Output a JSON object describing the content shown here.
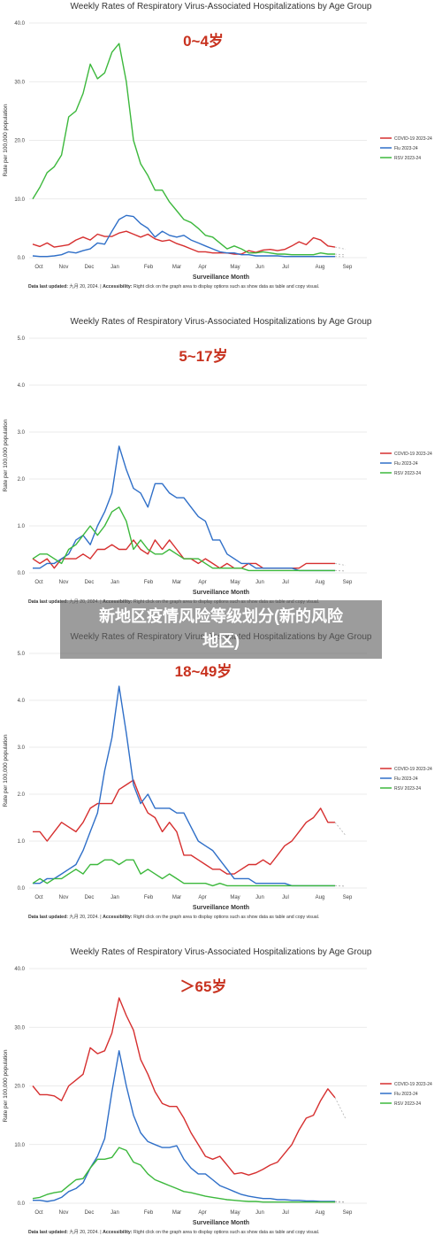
{
  "overlay": {
    "line1": "新地区疫情风险等级划分(新的风险",
    "line2": "地区)"
  },
  "footer": {
    "label": "Data last updated:",
    "date": " 九月 20, 2024. | ",
    "access_label": "Accessibility:",
    "access_text": " Right click on the graph area to display options such as show data as table and copy visual."
  },
  "colors": {
    "covid": "#d62f2f",
    "flu": "#2f6fc8",
    "rsv": "#3cb83c",
    "age_label": "#c8321f"
  },
  "chart_data": [
    {
      "type": "line",
      "title": "Weekly Rates of Respiratory Virus-Associated Hospitalizations by Age Group",
      "age_group": "0~4岁",
      "xlabel": "Surveillance Month",
      "ylabel": "Rate per 100,000 population",
      "ylim": [
        0,
        40
      ],
      "yticks": [
        "0.0",
        "10.0",
        "20.0",
        "30.0",
        "40.0"
      ],
      "x_ticks": [
        "Oct",
        "Nov",
        "Dec",
        "Jan",
        "Feb",
        "Mar",
        "Apr",
        "May",
        "Jun",
        "Jul",
        "Aug",
        "Sep"
      ],
      "legend": "right",
      "series": [
        {
          "name": "COVID-19 2023-24",
          "color": "#d62f2f",
          "values": [
            2.3,
            1.9,
            2.5,
            1.8,
            2.0,
            2.2,
            3.0,
            3.5,
            3.0,
            4.0,
            3.6,
            3.6,
            4.2,
            4.5,
            4.0,
            3.5,
            4.0,
            3.2,
            2.8,
            3.0,
            2.4,
            2.0,
            1.5,
            1.0,
            1.0,
            0.8,
            0.8,
            0.8,
            0.6,
            0.6,
            1.2,
            0.9,
            1.3,
            1.4,
            1.2,
            1.4,
            2.0,
            2.7,
            2.2,
            3.4,
            3.0,
            2.0,
            1.8
          ]
        },
        {
          "name": "Flu 2023-24",
          "color": "#2f6fc8",
          "values": [
            0.3,
            0.2,
            0.2,
            0.3,
            0.5,
            1.0,
            0.8,
            1.2,
            1.5,
            2.5,
            2.3,
            4.5,
            6.5,
            7.2,
            7.0,
            5.8,
            5.0,
            3.5,
            4.5,
            3.8,
            3.5,
            3.8,
            3.0,
            2.5,
            2.0,
            1.5,
            1.0,
            0.8,
            0.8,
            0.5,
            0.5,
            0.3,
            0.3,
            0.3,
            0.3,
            0.2,
            0.2,
            0.2,
            0.2,
            0.2,
            0.2,
            0.2,
            0.2
          ]
        },
        {
          "name": "RSV 2023-24",
          "color": "#3cb83c",
          "values": [
            10.0,
            12.0,
            14.5,
            15.5,
            17.5,
            24.0,
            25.0,
            28.0,
            33.0,
            30.5,
            31.5,
            35.0,
            36.5,
            30.0,
            20.0,
            16.0,
            14.0,
            11.5,
            11.5,
            9.5,
            8.0,
            6.5,
            6.0,
            5.0,
            3.8,
            3.5,
            2.5,
            1.5,
            2.0,
            1.5,
            0.8,
            0.8,
            1.0,
            0.8,
            0.6,
            0.6,
            0.5,
            0.5,
            0.5,
            0.5,
            0.8,
            0.6,
            0.6
          ]
        }
      ]
    },
    {
      "type": "line",
      "title": "Weekly Rates of Respiratory Virus-Associated Hospitalizations by Age Group",
      "age_group": "5~17岁",
      "xlabel": "Surveillance Month",
      "ylabel": "Rate per 100,000 population",
      "ylim": [
        0,
        5
      ],
      "yticks": [
        "0.0",
        "1.0",
        "2.0",
        "3.0",
        "4.0",
        "5.0"
      ],
      "x_ticks": [
        "Oct",
        "Nov",
        "Dec",
        "Jan",
        "Feb",
        "Mar",
        "Apr",
        "May",
        "Jun",
        "Jul",
        "Aug",
        "Sep"
      ],
      "legend": "right",
      "series": [
        {
          "name": "COVID-19 2023-24",
          "color": "#d62f2f",
          "values": [
            0.3,
            0.2,
            0.3,
            0.1,
            0.3,
            0.3,
            0.3,
            0.4,
            0.3,
            0.5,
            0.5,
            0.6,
            0.5,
            0.5,
            0.7,
            0.5,
            0.4,
            0.7,
            0.5,
            0.7,
            0.5,
            0.3,
            0.3,
            0.2,
            0.3,
            0.2,
            0.1,
            0.2,
            0.1,
            0.1,
            0.2,
            0.2,
            0.1,
            0.1,
            0.1,
            0.1,
            0.1,
            0.1,
            0.2,
            0.2,
            0.2,
            0.2,
            0.2
          ]
        },
        {
          "name": "Flu 2023-24",
          "color": "#2f6fc8",
          "values": [
            0.1,
            0.1,
            0.2,
            0.2,
            0.3,
            0.4,
            0.7,
            0.8,
            0.6,
            1.0,
            1.3,
            1.7,
            2.7,
            2.2,
            1.8,
            1.7,
            1.4,
            1.9,
            1.9,
            1.7,
            1.6,
            1.6,
            1.4,
            1.2,
            1.1,
            0.7,
            0.7,
            0.4,
            0.3,
            0.2,
            0.2,
            0.1,
            0.1,
            0.1,
            0.1,
            0.1,
            0.1,
            0.05,
            0.05,
            0.05,
            0.05,
            0.05,
            0.05
          ]
        },
        {
          "name": "RSV 2023-24",
          "color": "#3cb83c",
          "values": [
            0.3,
            0.4,
            0.4,
            0.3,
            0.2,
            0.5,
            0.6,
            0.8,
            1.0,
            0.8,
            1.0,
            1.3,
            1.4,
            1.1,
            0.5,
            0.7,
            0.5,
            0.4,
            0.4,
            0.5,
            0.4,
            0.3,
            0.3,
            0.3,
            0.2,
            0.1,
            0.1,
            0.1,
            0.1,
            0.1,
            0.05,
            0.05,
            0.05,
            0.05,
            0.05,
            0.05,
            0.05,
            0.05,
            0.05,
            0.05,
            0.05,
            0.05,
            0.05
          ]
        }
      ]
    },
    {
      "type": "line",
      "title": "Weekly Rates of Respiratory Virus-Associated Hospitalizations by Age Group",
      "age_group": "18~49岁",
      "xlabel": "Surveillance Month",
      "ylabel": "Rate per 100,000 population",
      "ylim": [
        0,
        5
      ],
      "yticks": [
        "0.0",
        "1.0",
        "2.0",
        "3.0",
        "4.0",
        "5.0"
      ],
      "x_ticks": [
        "Oct",
        "Nov",
        "Dec",
        "Jan",
        "Feb",
        "Mar",
        "Apr",
        "May",
        "Jun",
        "Jul",
        "Aug",
        "Sep"
      ],
      "legend": "right",
      "series": [
        {
          "name": "COVID-19 2023-24",
          "color": "#d62f2f",
          "values": [
            1.2,
            1.2,
            1.0,
            1.2,
            1.4,
            1.3,
            1.2,
            1.4,
            1.7,
            1.8,
            1.8,
            1.8,
            2.1,
            2.2,
            2.3,
            1.9,
            1.6,
            1.5,
            1.2,
            1.4,
            1.2,
            0.7,
            0.7,
            0.6,
            0.5,
            0.4,
            0.4,
            0.3,
            0.3,
            0.4,
            0.5,
            0.5,
            0.6,
            0.5,
            0.7,
            0.9,
            1.0,
            1.2,
            1.4,
            1.5,
            1.7,
            1.4,
            1.4
          ]
        },
        {
          "name": "Flu 2023-24",
          "color": "#2f6fc8",
          "values": [
            0.1,
            0.1,
            0.2,
            0.2,
            0.3,
            0.4,
            0.5,
            0.8,
            1.2,
            1.6,
            2.5,
            3.2,
            4.3,
            3.3,
            2.2,
            1.8,
            2.0,
            1.7,
            1.7,
            1.7,
            1.6,
            1.6,
            1.3,
            1.0,
            0.9,
            0.8,
            0.6,
            0.4,
            0.2,
            0.2,
            0.2,
            0.1,
            0.1,
            0.1,
            0.1,
            0.1,
            0.05,
            0.05,
            0.05,
            0.05,
            0.05,
            0.05,
            0.05
          ]
        },
        {
          "name": "RSV 2023-24",
          "color": "#3cb83c",
          "values": [
            0.1,
            0.2,
            0.1,
            0.2,
            0.2,
            0.3,
            0.4,
            0.3,
            0.5,
            0.5,
            0.6,
            0.6,
            0.5,
            0.6,
            0.6,
            0.3,
            0.4,
            0.3,
            0.2,
            0.3,
            0.2,
            0.1,
            0.1,
            0.1,
            0.1,
            0.05,
            0.1,
            0.05,
            0.05,
            0.05,
            0.05,
            0.05,
            0.05,
            0.05,
            0.05,
            0.05,
            0.05,
            0.05,
            0.05,
            0.05,
            0.05,
            0.05,
            0.05
          ]
        }
      ]
    },
    {
      "type": "line",
      "title": "Weekly Rates of Respiratory Virus-Associated Hospitalizations by Age Group",
      "age_group": "＞65岁",
      "xlabel": "Surveillance Month",
      "ylabel": "Rate per 100,000 population",
      "ylim": [
        0,
        40
      ],
      "yticks": [
        "0.0",
        "10.0",
        "20.0",
        "30.0",
        "40.0"
      ],
      "x_ticks": [
        "Oct",
        "Nov",
        "Dec",
        "Jan",
        "Feb",
        "Mar",
        "Apr",
        "May",
        "Jun",
        "Jul",
        "Aug",
        "Sep"
      ],
      "legend": "right",
      "series": [
        {
          "name": "COVID-19 2023-24",
          "color": "#d62f2f",
          "values": [
            20.0,
            18.5,
            18.5,
            18.3,
            17.5,
            20.0,
            21.0,
            22.0,
            26.5,
            25.5,
            26.0,
            29.0,
            35.0,
            32.0,
            29.5,
            24.5,
            22.0,
            19.0,
            17.0,
            16.5,
            16.5,
            14.5,
            12.0,
            10.0,
            8.0,
            7.5,
            8.0,
            6.5,
            5.0,
            5.2,
            4.8,
            5.2,
            5.8,
            6.5,
            7.0,
            8.5,
            10.0,
            12.5,
            14.5,
            15.0,
            17.5,
            19.5,
            18.0
          ]
        },
        {
          "name": "Flu 2023-24",
          "color": "#2f6fc8",
          "values": [
            0.5,
            0.5,
            0.3,
            0.5,
            1.0,
            2.0,
            2.5,
            3.5,
            6.0,
            8.0,
            11.0,
            19.0,
            26.0,
            20.0,
            15.0,
            12.0,
            10.5,
            10.0,
            9.5,
            9.5,
            9.8,
            7.5,
            6.0,
            5.0,
            5.0,
            4.0,
            3.0,
            2.5,
            2.0,
            1.5,
            1.2,
            1.0,
            0.8,
            0.8,
            0.6,
            0.6,
            0.5,
            0.5,
            0.4,
            0.4,
            0.3,
            0.3,
            0.3
          ]
        },
        {
          "name": "RSV 2023-24",
          "color": "#3cb83c",
          "values": [
            0.8,
            1.0,
            1.5,
            1.8,
            2.0,
            3.0,
            4.0,
            4.2,
            6.0,
            7.5,
            7.5,
            7.8,
            9.5,
            9.0,
            7.0,
            6.5,
            5.0,
            4.0,
            3.5,
            3.0,
            2.5,
            2.0,
            1.8,
            1.5,
            1.2,
            1.0,
            0.8,
            0.6,
            0.5,
            0.4,
            0.3,
            0.3,
            0.2,
            0.2,
            0.2,
            0.2,
            0.2,
            0.2,
            0.2,
            0.2,
            0.2,
            0.2,
            0.2
          ]
        }
      ]
    }
  ]
}
